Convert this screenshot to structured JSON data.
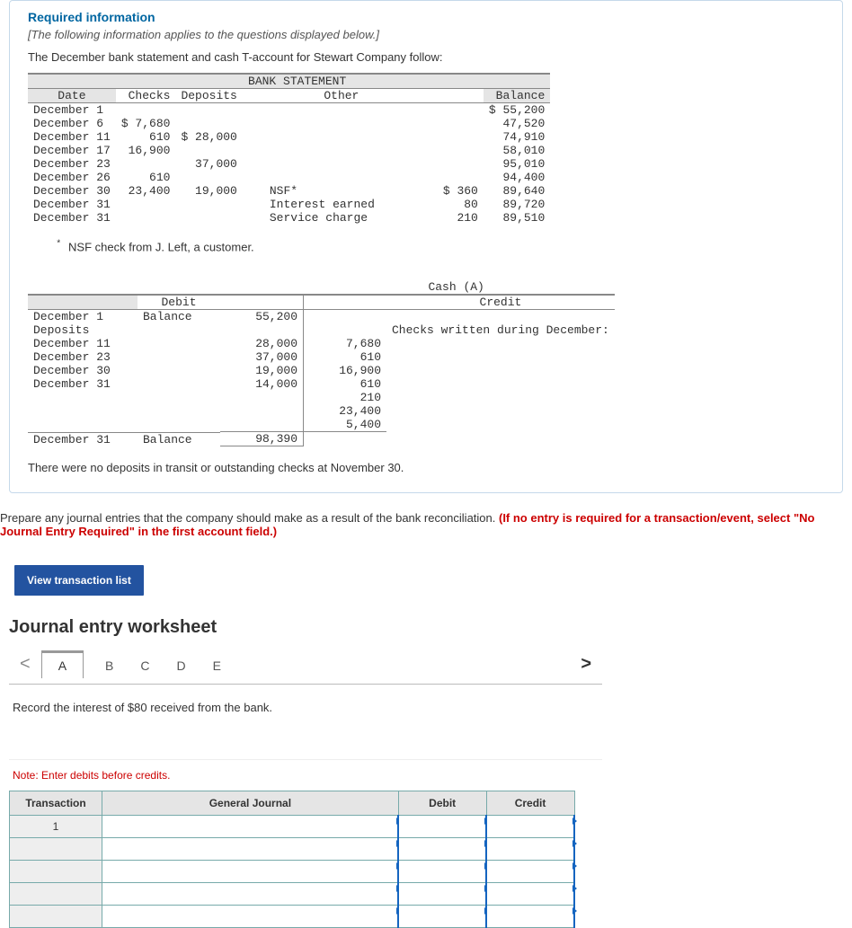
{
  "header": {
    "required": "Required information",
    "italic": "[The following information applies to the questions displayed below.]",
    "intro": "The December bank statement and cash T-account for Stewart Company follow:"
  },
  "bank_statement": {
    "title": "BANK STATEMENT",
    "columns": [
      "Date",
      "Checks",
      "Deposits",
      "Other",
      "",
      "Balance"
    ],
    "rows": [
      [
        "December 1",
        "",
        "",
        "",
        "",
        "$ 55,200"
      ],
      [
        "December 6",
        "$ 7,680",
        "",
        "",
        "",
        "47,520"
      ],
      [
        "December 11",
        "610",
        "$ 28,000",
        "",
        "",
        "74,910"
      ],
      [
        "December 17",
        "16,900",
        "",
        "",
        "",
        "58,010"
      ],
      [
        "December 23",
        "",
        "37,000",
        "",
        "",
        "95,010"
      ],
      [
        "December 26",
        "610",
        "",
        "",
        "",
        "94,400"
      ],
      [
        "December 30",
        "23,400",
        "19,000",
        "NSF*",
        "$ 360",
        "89,640"
      ],
      [
        "December 31",
        "",
        "",
        "Interest earned",
        "80",
        "89,720"
      ],
      [
        "December 31",
        "",
        "",
        "Service charge",
        "210",
        "89,510"
      ]
    ],
    "footnote": "NSF check from J. Left, a customer.",
    "asterisk": "*"
  },
  "cash_account": {
    "title": "Cash (A)",
    "debit_label": "Debit",
    "credit_label": "Credit",
    "opening": {
      "date": "December 1",
      "desc": "Balance",
      "amount": "55,200"
    },
    "deposits_label": "Deposits",
    "checks_label": "Checks written during December:",
    "debit_rows": [
      [
        "December 11",
        "28,000"
      ],
      [
        "December 23",
        "37,000"
      ],
      [
        "December 30",
        "19,000"
      ],
      [
        "December 31",
        "14,000"
      ]
    ],
    "credit_rows": [
      "7,680",
      "610",
      "16,900",
      "610",
      "210",
      "23,400",
      "5,400"
    ],
    "closing": {
      "date": "December 31",
      "desc": "Balance",
      "amount": "98,390"
    },
    "tail_note": "There were no deposits in transit or outstanding checks at November 30."
  },
  "instruction": {
    "black": "Prepare any journal entries that the company should make as a result of the bank reconciliation. ",
    "red": "(If no entry is required for a transaction/event, select \"No Journal Entry Required\" in the first account field.)"
  },
  "button": {
    "label": "View transaction list"
  },
  "worksheet": {
    "title": "Journal entry worksheet",
    "tabs": [
      "A",
      "B",
      "C",
      "D",
      "E"
    ],
    "active_tab": 0,
    "chevron_left": "<",
    "chevron_right": ">",
    "prompt": "Record the interest of $80 received from the bank.",
    "note": "Note: Enter debits before credits.",
    "columns": [
      "Transaction",
      "General Journal",
      "Debit",
      "Credit"
    ],
    "txn_number": "1",
    "col_widths": [
      "100px",
      "320px",
      "95px",
      "95px"
    ]
  }
}
